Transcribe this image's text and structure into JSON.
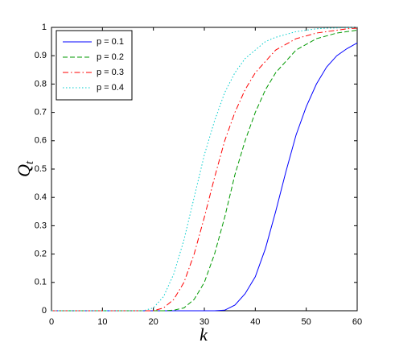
{
  "chart_data": {
    "type": "line",
    "xlabel": "k",
    "ylabel": "Q",
    "ylabel_sub": "t",
    "x": [
      0,
      2,
      4,
      6,
      8,
      10,
      12,
      14,
      16,
      18,
      20,
      22,
      24,
      26,
      28,
      30,
      32,
      34,
      36,
      38,
      40,
      42,
      44,
      46,
      48,
      50,
      52,
      54,
      56,
      58,
      60
    ],
    "series": [
      {
        "name": "p = 0.1",
        "color": "#0000ff",
        "dash": "solid",
        "values": [
          0,
          0,
          0,
          0,
          0,
          0,
          0,
          0,
          0,
          0,
          0,
          0,
          0,
          0,
          0,
          0,
          0,
          0.002,
          0.02,
          0.06,
          0.12,
          0.22,
          0.35,
          0.49,
          0.62,
          0.72,
          0.8,
          0.86,
          0.9,
          0.925,
          0.945
        ]
      },
      {
        "name": "p = 0.2",
        "color": "#009900",
        "dash": "dashed",
        "values": [
          0,
          0,
          0,
          0,
          0,
          0,
          0,
          0,
          0,
          0,
          0,
          0,
          0.002,
          0.01,
          0.04,
          0.1,
          0.2,
          0.33,
          0.48,
          0.6,
          0.7,
          0.78,
          0.84,
          0.88,
          0.92,
          0.94,
          0.96,
          0.97,
          0.98,
          0.985,
          0.99
        ]
      },
      {
        "name": "p = 0.3",
        "color": "#ff0000",
        "dash": "dashdot",
        "values": [
          0,
          0,
          0,
          0,
          0,
          0,
          0,
          0,
          0,
          0,
          0,
          0.01,
          0.04,
          0.1,
          0.2,
          0.33,
          0.47,
          0.6,
          0.7,
          0.78,
          0.84,
          0.88,
          0.92,
          0.94,
          0.96,
          0.97,
          0.98,
          0.985,
          0.99,
          0.995,
          0.997
        ]
      },
      {
        "name": "p = 0.4",
        "color": "#00cccc",
        "dash": "dotted",
        "values": [
          0,
          0,
          0,
          0,
          0,
          0,
          0,
          0,
          0,
          0,
          0.01,
          0.05,
          0.13,
          0.25,
          0.4,
          0.55,
          0.67,
          0.77,
          0.84,
          0.89,
          0.92,
          0.95,
          0.965,
          0.975,
          0.985,
          0.99,
          0.995,
          0.997,
          0.998,
          0.999,
          1
        ]
      }
    ],
    "xlim": [
      0,
      60
    ],
    "xticks": [
      0,
      10,
      20,
      30,
      40,
      50,
      60
    ],
    "ylim": [
      0,
      1
    ],
    "yticks": [
      0,
      0.1,
      0.2,
      0.3,
      0.4,
      0.5,
      0.6,
      0.7,
      0.8,
      0.9,
      1
    ],
    "grid": false,
    "legend": "upper left"
  }
}
